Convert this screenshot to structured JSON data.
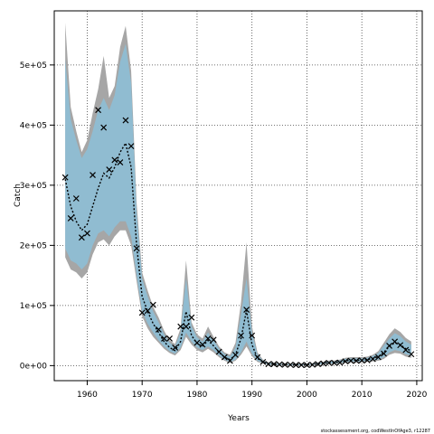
{
  "chart_data": {
    "type": "line",
    "title": "",
    "xlabel": "Years",
    "ylabel": "Catch",
    "xlim": [
      1954,
      2021
    ],
    "ylim": [
      -25000,
      590000
    ],
    "x_ticks": [
      1960,
      1970,
      1980,
      1990,
      2000,
      2010,
      2020
    ],
    "x_tick_labels": [
      "1960",
      "1970",
      "1980",
      "1990",
      "2000",
      "2010",
      "2020"
    ],
    "y_ticks": [
      0,
      100000,
      200000,
      300000,
      400000,
      500000
    ],
    "y_tick_labels": [
      "0e+00",
      "1e+05",
      "2e+05",
      "3e+05",
      "4e+05",
      "5e+05"
    ],
    "grid": true,
    "credit": "stockassessment.org, codWestInOfAge3, r12287",
    "colors": {
      "outer_band": "#a6a6a6",
      "inner_band": "#8cbfd8",
      "estimate_line": "#000000",
      "observed_marker": "#000000",
      "grid": "#444444"
    },
    "series": [
      {
        "kind": "estimate",
        "x": [
          1956,
          1957,
          1958,
          1959,
          1960,
          1961,
          1962,
          1963,
          1964,
          1965,
          1966,
          1967,
          1968,
          1969,
          1970,
          1971,
          1972,
          1973,
          1974,
          1975,
          1976,
          1977,
          1978,
          1979,
          1980,
          1981,
          1982,
          1983,
          1984,
          1985,
          1986,
          1987,
          1988,
          1989,
          1990,
          1991,
          1992,
          1993,
          1994,
          1995,
          1996,
          1997,
          1998,
          1999,
          2000,
          2001,
          2002,
          2003,
          2004,
          2005,
          2006,
          2007,
          2008,
          2009,
          2010,
          2011,
          2012,
          2013,
          2014,
          2015,
          2016,
          2017,
          2018,
          2019
        ],
        "y": [
          310000,
          265000,
          240000,
          225000,
          235000,
          265000,
          295000,
          320000,
          312000,
          330000,
          355000,
          370000,
          330000,
          200000,
          115000,
          90000,
          70000,
          55000,
          40000,
          30000,
          25000,
          40000,
          90000,
          50000,
          37000,
          32000,
          42000,
          33000,
          22000,
          14000,
          10000,
          18000,
          45000,
          92000,
          35000,
          12000,
          6000,
          3000,
          2500,
          2000,
          2000,
          1500,
          1500,
          1500,
          1500,
          2000,
          3000,
          4000,
          5000,
          5000,
          6000,
          8000,
          9000,
          9000,
          9000,
          10000,
          12000,
          15000,
          22000,
          32000,
          38000,
          35000,
          28000,
          25000
        ]
      },
      {
        "kind": "inner_lower",
        "x": [
          1956,
          1957,
          1958,
          1959,
          1960,
          1961,
          1962,
          1963,
          1964,
          1965,
          1966,
          1967,
          1968,
          1969,
          1970,
          1971,
          1972,
          1973,
          1974,
          1975,
          1976,
          1977,
          1978,
          1979,
          1980,
          1981,
          1982,
          1983,
          1984,
          1985,
          1986,
          1987,
          1988,
          1989,
          1990,
          1991,
          1992,
          1993,
          1994,
          1995,
          1996,
          1997,
          1998,
          1999,
          2000,
          2001,
          2002,
          2003,
          2004,
          2005,
          2006,
          2007,
          2008,
          2009,
          2010,
          2011,
          2012,
          2013,
          2014,
          2015,
          2016,
          2017,
          2018,
          2019
        ],
        "y": [
          195000,
          175000,
          170000,
          160000,
          170000,
          200000,
          220000,
          225000,
          215000,
          230000,
          240000,
          240000,
          215000,
          150000,
          90000,
          70000,
          55000,
          42000,
          32000,
          24000,
          20000,
          30000,
          55000,
          40000,
          30000,
          26000,
          32000,
          26000,
          17000,
          10000,
          6000,
          10000,
          22000,
          40000,
          20000,
          8000,
          4500,
          2000,
          1500,
          1500,
          1500,
          1000,
          1000,
          1000,
          1000,
          1500,
          2000,
          3000,
          3500,
          3500,
          4500,
          6000,
          7000,
          7000,
          7000,
          8000,
          9000,
          10000,
          14000,
          22000,
          26000,
          24000,
          19000,
          17000
        ]
      },
      {
        "kind": "inner_upper",
        "x": [
          1956,
          1957,
          1958,
          1959,
          1960,
          1961,
          1962,
          1963,
          1964,
          1965,
          1966,
          1967,
          1968,
          1969,
          1970,
          1971,
          1972,
          1973,
          1974,
          1975,
          1976,
          1977,
          1978,
          1979,
          1980,
          1981,
          1982,
          1983,
          1984,
          1985,
          1986,
          1987,
          1988,
          1989,
          1990,
          1991,
          1992,
          1993,
          1994,
          1995,
          1996,
          1997,
          1998,
          1999,
          2000,
          2001,
          2002,
          2003,
          2004,
          2005,
          2006,
          2007,
          2008,
          2009,
          2010,
          2011,
          2012,
          2013,
          2014,
          2015,
          2016,
          2017,
          2018,
          2019
        ],
        "y": [
          510000,
          410000,
          375000,
          345000,
          360000,
          390000,
          425000,
          445000,
          425000,
          450000,
          505000,
          535000,
          470000,
          255000,
          145000,
          115000,
          90000,
          72000,
          52000,
          38000,
          32000,
          55000,
          145000,
          65000,
          47000,
          40000,
          55000,
          42000,
          28000,
          19000,
          15000,
          30000,
          85000,
          145000,
          55000,
          18000,
          8500,
          4500,
          3500,
          3000,
          3000,
          2500,
          2500,
          2500,
          2500,
          3000,
          4500,
          5500,
          7000,
          7000,
          8500,
          11000,
          12000,
          12000,
          12000,
          13000,
          16000,
          21000,
          33000,
          45000,
          54000,
          49000,
          40000,
          35000
        ]
      },
      {
        "kind": "outer_lower",
        "x": [
          1956,
          1957,
          1958,
          1959,
          1960,
          1961,
          1962,
          1963,
          1964,
          1965,
          1966,
          1967,
          1968,
          1969,
          1970,
          1971,
          1972,
          1973,
          1974,
          1975,
          1976,
          1977,
          1978,
          1979,
          1980,
          1981,
          1982,
          1983,
          1984,
          1985,
          1986,
          1987,
          1988,
          1989,
          1990,
          1991,
          1992,
          1993,
          1994,
          1995,
          1996,
          1997,
          1998,
          1999,
          2000,
          2001,
          2002,
          2003,
          2004,
          2005,
          2006,
          2007,
          2008,
          2009,
          2010,
          2011,
          2012,
          2013,
          2014,
          2015,
          2016,
          2017,
          2018,
          2019
        ],
        "y": [
          180000,
          160000,
          155000,
          145000,
          155000,
          185000,
          205000,
          210000,
          200000,
          215000,
          225000,
          225000,
          200000,
          140000,
          82000,
          62000,
          48000,
          38000,
          28000,
          21000,
          17000,
          26000,
          48000,
          35000,
          26000,
          22000,
          28000,
          22000,
          14000,
          8000,
          4500,
          8000,
          18000,
          32000,
          16000,
          6000,
          3500,
          1500,
          1000,
          1000,
          1000,
          500,
          500,
          500,
          500,
          1000,
          1500,
          2000,
          2500,
          2500,
          3500,
          4500,
          5500,
          5500,
          5500,
          6500,
          7000,
          8000,
          11000,
          18000,
          21000,
          20000,
          15000,
          13000
        ]
      },
      {
        "kind": "outer_upper",
        "x": [
          1956,
          1957,
          1958,
          1959,
          1960,
          1961,
          1962,
          1963,
          1964,
          1965,
          1966,
          1967,
          1968,
          1969,
          1970,
          1971,
          1972,
          1973,
          1974,
          1975,
          1976,
          1977,
          1978,
          1979,
          1980,
          1981,
          1982,
          1983,
          1984,
          1985,
          1986,
          1987,
          1988,
          1989,
          1990,
          1991,
          1992,
          1993,
          1994,
          1995,
          1996,
          1997,
          1998,
          1999,
          2000,
          2001,
          2002,
          2003,
          2004,
          2005,
          2006,
          2007,
          2008,
          2009,
          2010,
          2011,
          2012,
          2013,
          2014,
          2015,
          2016,
          2017,
          2018,
          2019
        ],
        "y": [
          570000,
          430000,
          390000,
          355000,
          375000,
          420000,
          460000,
          515000,
          445000,
          465000,
          530000,
          565000,
          490000,
          270000,
          155000,
          125000,
          98000,
          80000,
          58000,
          42000,
          36000,
          62000,
          175000,
          72000,
          52000,
          45000,
          65000,
          48000,
          32000,
          22000,
          18000,
          38000,
          105000,
          205000,
          65000,
          22000,
          10000,
          5500,
          4500,
          4000,
          4000,
          3500,
          3500,
          3500,
          3500,
          4000,
          5500,
          6500,
          8500,
          8500,
          10000,
          13000,
          14000,
          14000,
          14000,
          15000,
          18000,
          24000,
          38000,
          52000,
          62000,
          56000,
          46000,
          40000
        ]
      },
      {
        "kind": "observed",
        "x": [
          1956,
          1957,
          1958,
          1959,
          1960,
          1961,
          1962,
          1963,
          1964,
          1965,
          1966,
          1967,
          1968,
          1969,
          1970,
          1971,
          1972,
          1973,
          1974,
          1975,
          1976,
          1977,
          1978,
          1979,
          1980,
          1981,
          1982,
          1983,
          1984,
          1985,
          1986,
          1987,
          1988,
          1989,
          1990,
          1991,
          1992,
          1993,
          1994,
          1995,
          1996,
          1997,
          1998,
          1999,
          2000,
          2001,
          2002,
          2003,
          2004,
          2005,
          2006,
          2007,
          2008,
          2009,
          2010,
          2011,
          2012,
          2013,
          2014,
          2015,
          2016,
          2017,
          2018,
          2019
        ],
        "y": [
          313000,
          245000,
          278000,
          213000,
          220000,
          317000,
          425000,
          396000,
          326000,
          342000,
          338000,
          408000,
          365000,
          195000,
          88000,
          91000,
          101000,
          60000,
          45000,
          45000,
          30000,
          65000,
          65000,
          80000,
          38000,
          35000,
          45000,
          43000,
          23000,
          14000,
          8000,
          18000,
          50000,
          93000,
          50000,
          14000,
          6000,
          2500,
          2500,
          2000,
          1500,
          1500,
          1000,
          1000,
          1000,
          1500,
          2500,
          3500,
          4500,
          4500,
          5000,
          7000,
          8000,
          8000,
          8500,
          9000,
          11000,
          14000,
          20000,
          33000,
          40000,
          34000,
          26000,
          19000
        ]
      }
    ]
  }
}
